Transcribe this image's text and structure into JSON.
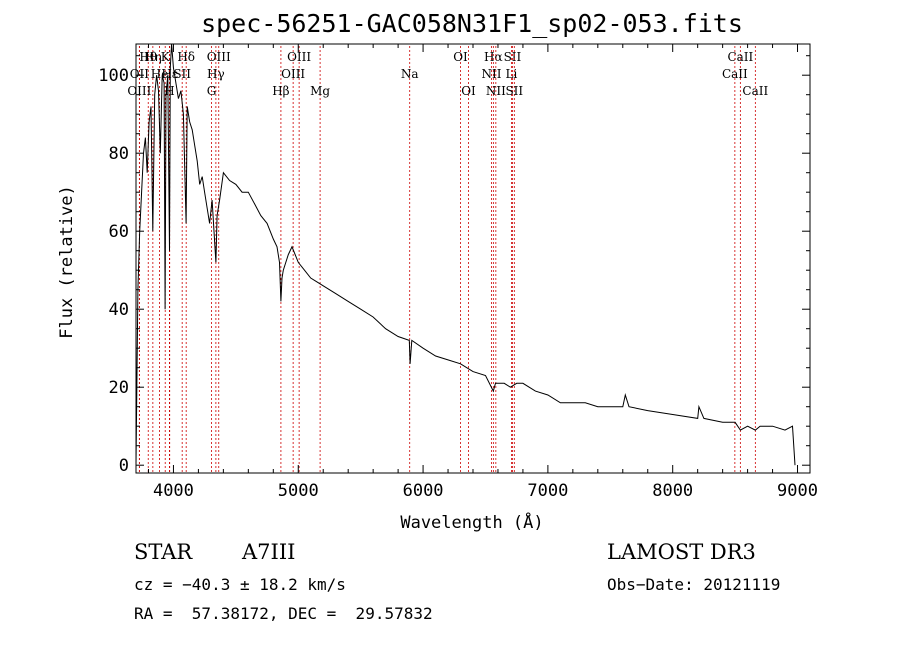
{
  "chart_data": {
    "type": "line",
    "title": "spec-56251-GAC058N31F1_sp02-053.fits",
    "xlabel": "Wavelength (Å)",
    "ylabel": "Flux (relative)",
    "xlim": [
      3700,
      9100
    ],
    "ylim": [
      -2,
      108
    ],
    "x_ticks": [
      4000,
      5000,
      6000,
      7000,
      8000,
      9000
    ],
    "y_ticks": [
      0,
      20,
      40,
      60,
      80,
      100
    ],
    "series": [
      {
        "name": "spectrum",
        "x": [
          3700,
          3715,
          3730,
          3745,
          3760,
          3775,
          3790,
          3805,
          3820,
          3835,
          3850,
          3865,
          3880,
          3895,
          3910,
          3925,
          3933,
          3940,
          3955,
          3968,
          3975,
          3985,
          4000,
          4020,
          4040,
          4060,
          4080,
          4101,
          4110,
          4130,
          4150,
          4170,
          4190,
          4210,
          4230,
          4250,
          4270,
          4290,
          4310,
          4325,
          4340,
          4350,
          4370,
          4400,
          4450,
          4500,
          4550,
          4600,
          4650,
          4700,
          4750,
          4800,
          4830,
          4850,
          4861,
          4870,
          4880,
          4900,
          4920,
          4950,
          5000,
          5050,
          5100,
          5150,
          5200,
          5300,
          5400,
          5500,
          5600,
          5700,
          5800,
          5890,
          5896,
          5910,
          6000,
          6100,
          6200,
          6300,
          6400,
          6500,
          6563,
          6580,
          6650,
          6700,
          6750,
          6800,
          6900,
          7000,
          7100,
          7200,
          7300,
          7400,
          7500,
          7600,
          7620,
          7650,
          7800,
          8000,
          8200,
          8210,
          8250,
          8400,
          8500,
          8542,
          8600,
          8662,
          8700,
          8800,
          8900,
          8960,
          8980
        ],
        "y": [
          0,
          45,
          60,
          70,
          80,
          84,
          75,
          88,
          92,
          60,
          95,
          100,
          96,
          80,
          100,
          98,
          40,
          95,
          100,
          55,
          102,
          108,
          102,
          98,
          94,
          96,
          90,
          62,
          92,
          88,
          86,
          82,
          78,
          72,
          74,
          70,
          66,
          62,
          68,
          60,
          52,
          64,
          68,
          75,
          73,
          72,
          70,
          70,
          67,
          64,
          62,
          58,
          56,
          52,
          42,
          48,
          50,
          52,
          54,
          56,
          52,
          50,
          48,
          47,
          46,
          44,
          42,
          40,
          38,
          35,
          33,
          32,
          26,
          32,
          30,
          28,
          27,
          26,
          24,
          23,
          19,
          21,
          21,
          20,
          21,
          21,
          19,
          18,
          16,
          16,
          16,
          15,
          15,
          15,
          18,
          15,
          14,
          13,
          12,
          15,
          12,
          11,
          11,
          9,
          10,
          9,
          10,
          10,
          9,
          10,
          0
        ]
      }
    ],
    "lines": [
      {
        "name": "Hθ",
        "x": 3798,
        "row": 0
      },
      {
        "name": "OII",
        "x": 3727,
        "row": 1
      },
      {
        "name": "OIII",
        "x": 3727,
        "row": 2
      },
      {
        "name": "Hη",
        "x": 3835,
        "row": 0
      },
      {
        "name": "K",
        "x": 3934,
        "row": 0
      },
      {
        "name": "Hε",
        "x": 3970,
        "row": 1
      },
      {
        "name": "He",
        "x": 3889,
        "row": 1
      },
      {
        "name": "H",
        "x": 3968,
        "row": 2
      },
      {
        "name": "Hδ",
        "x": 4102,
        "row": 0
      },
      {
        "name": "SII",
        "x": 4070,
        "row": 1
      },
      {
        "name": "OIII",
        "x": 4363,
        "row": 0
      },
      {
        "name": "Hγ",
        "x": 4340,
        "row": 1
      },
      {
        "name": "G",
        "x": 4305,
        "row": 2
      },
      {
        "name": "OIII",
        "x": 5007,
        "row": 0
      },
      {
        "name": "OIII",
        "x": 4959,
        "row": 1
      },
      {
        "name": "Hβ",
        "x": 4861,
        "row": 2
      },
      {
        "name": "Mg",
        "x": 5175,
        "row": 2
      },
      {
        "name": "Na",
        "x": 5893,
        "row": 1
      },
      {
        "name": "OI",
        "x": 6300,
        "row": 0
      },
      {
        "name": "OI",
        "x": 6364,
        "row": 2
      },
      {
        "name": "Hα",
        "x": 6563,
        "row": 0
      },
      {
        "name": "SII",
        "x": 6716,
        "row": 0
      },
      {
        "name": "NII",
        "x": 6548,
        "row": 1
      },
      {
        "name": "Li",
        "x": 6708,
        "row": 1
      },
      {
        "name": "NII",
        "x": 6583,
        "row": 2
      },
      {
        "name": "SII",
        "x": 6731,
        "row": 2
      },
      {
        "name": "CaII",
        "x": 8542,
        "row": 0
      },
      {
        "name": "CaII",
        "x": 8498,
        "row": 1
      },
      {
        "name": "CaII",
        "x": 8662,
        "row": 2
      }
    ]
  },
  "info": {
    "type_label": "STAR",
    "subclass": "A7III",
    "survey": "LAMOST DR3",
    "cz": "cz = −40.3 ± 18.2 km/s",
    "obs_date": "Obs−Date: 20121119",
    "coords": "RA =  57.38172, DEC =  29.57832"
  }
}
